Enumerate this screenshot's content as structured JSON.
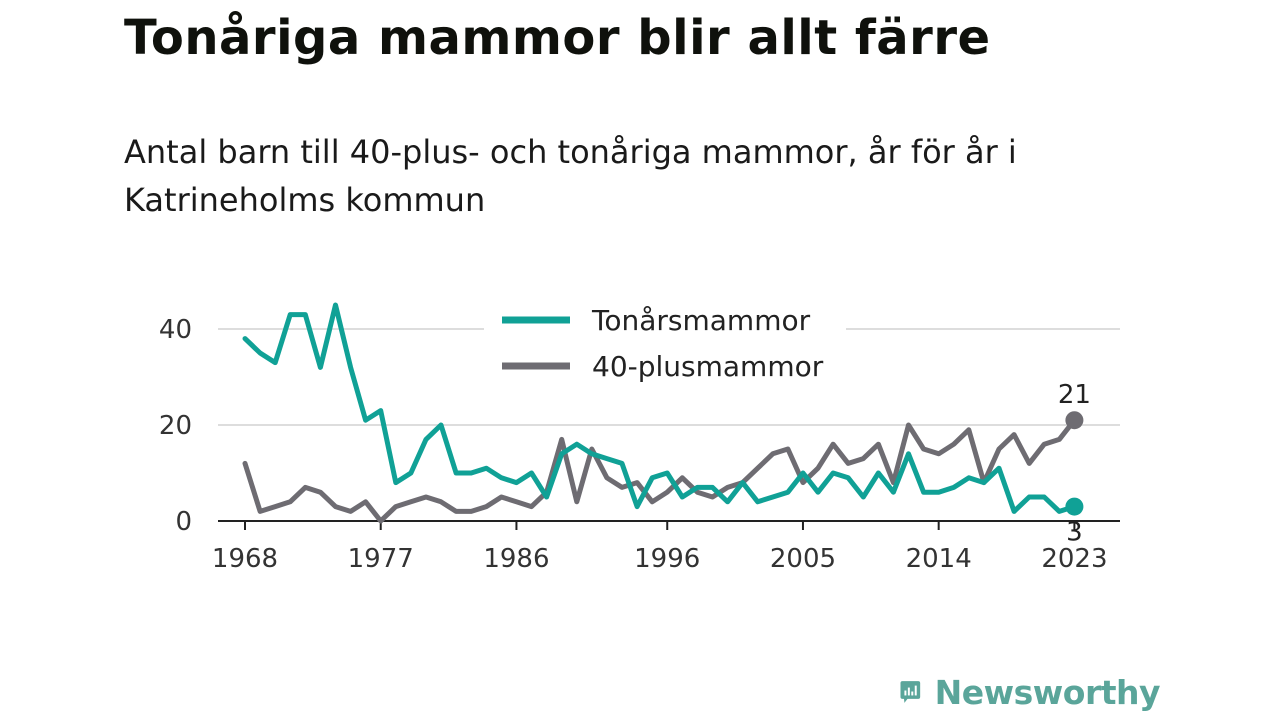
{
  "title": "Tonåriga mammor blir allt färre",
  "subtitle": "Antal barn till 40-plus- och tonåriga mammor, år för år i Katrineholms kommun",
  "brand": "Newsworthy",
  "colors": {
    "teen": "#10a196",
    "forty": "#6e6c72",
    "grid": "#dddddd",
    "axis": "#222222",
    "brand": "#5aa59a"
  },
  "chart_data": {
    "type": "line",
    "x_ticks": [
      1968,
      1977,
      1986,
      1996,
      2005,
      2014,
      2023
    ],
    "y_ticks": [
      0,
      20,
      40
    ],
    "xlim": [
      1968,
      2023
    ],
    "ylim": [
      0,
      48
    ],
    "grid": true,
    "legend_position": "top-center",
    "x": [
      1968,
      1969,
      1970,
      1971,
      1972,
      1973,
      1974,
      1975,
      1976,
      1977,
      1978,
      1979,
      1980,
      1981,
      1982,
      1983,
      1984,
      1985,
      1986,
      1987,
      1988,
      1989,
      1990,
      1991,
      1992,
      1993,
      1994,
      1995,
      1996,
      1997,
      1998,
      1999,
      2000,
      2001,
      2002,
      2003,
      2004,
      2005,
      2006,
      2007,
      2008,
      2009,
      2010,
      2011,
      2012,
      2013,
      2014,
      2015,
      2016,
      2017,
      2018,
      2019,
      2020,
      2021,
      2022,
      2023
    ],
    "series": [
      {
        "name": "Tonårsmammor",
        "color": "#10a196",
        "values": [
          38,
          35,
          33,
          43,
          43,
          32,
          45,
          32,
          21,
          23,
          8,
          10,
          17,
          20,
          10,
          10,
          11,
          9,
          8,
          10,
          5,
          14,
          16,
          14,
          13,
          12,
          3,
          9,
          10,
          5,
          7,
          7,
          4,
          8,
          4,
          5,
          6,
          10,
          6,
          10,
          9,
          5,
          10,
          6,
          14,
          6,
          6,
          7,
          9,
          8,
          11,
          2,
          5,
          5,
          2,
          3
        ],
        "end_label": "3"
      },
      {
        "name": "40-plusmammor",
        "color": "#6e6c72",
        "values": [
          12,
          2,
          3,
          4,
          7,
          6,
          3,
          2,
          4,
          0,
          3,
          4,
          5,
          4,
          2,
          2,
          3,
          5,
          4,
          3,
          6,
          17,
          4,
          15,
          9,
          7,
          8,
          4,
          6,
          9,
          6,
          5,
          7,
          8,
          11,
          14,
          15,
          8,
          11,
          16,
          12,
          13,
          16,
          8,
          20,
          15,
          14,
          16,
          19,
          8,
          15,
          18,
          12,
          16,
          17,
          21
        ],
        "end_label": "21"
      }
    ]
  }
}
